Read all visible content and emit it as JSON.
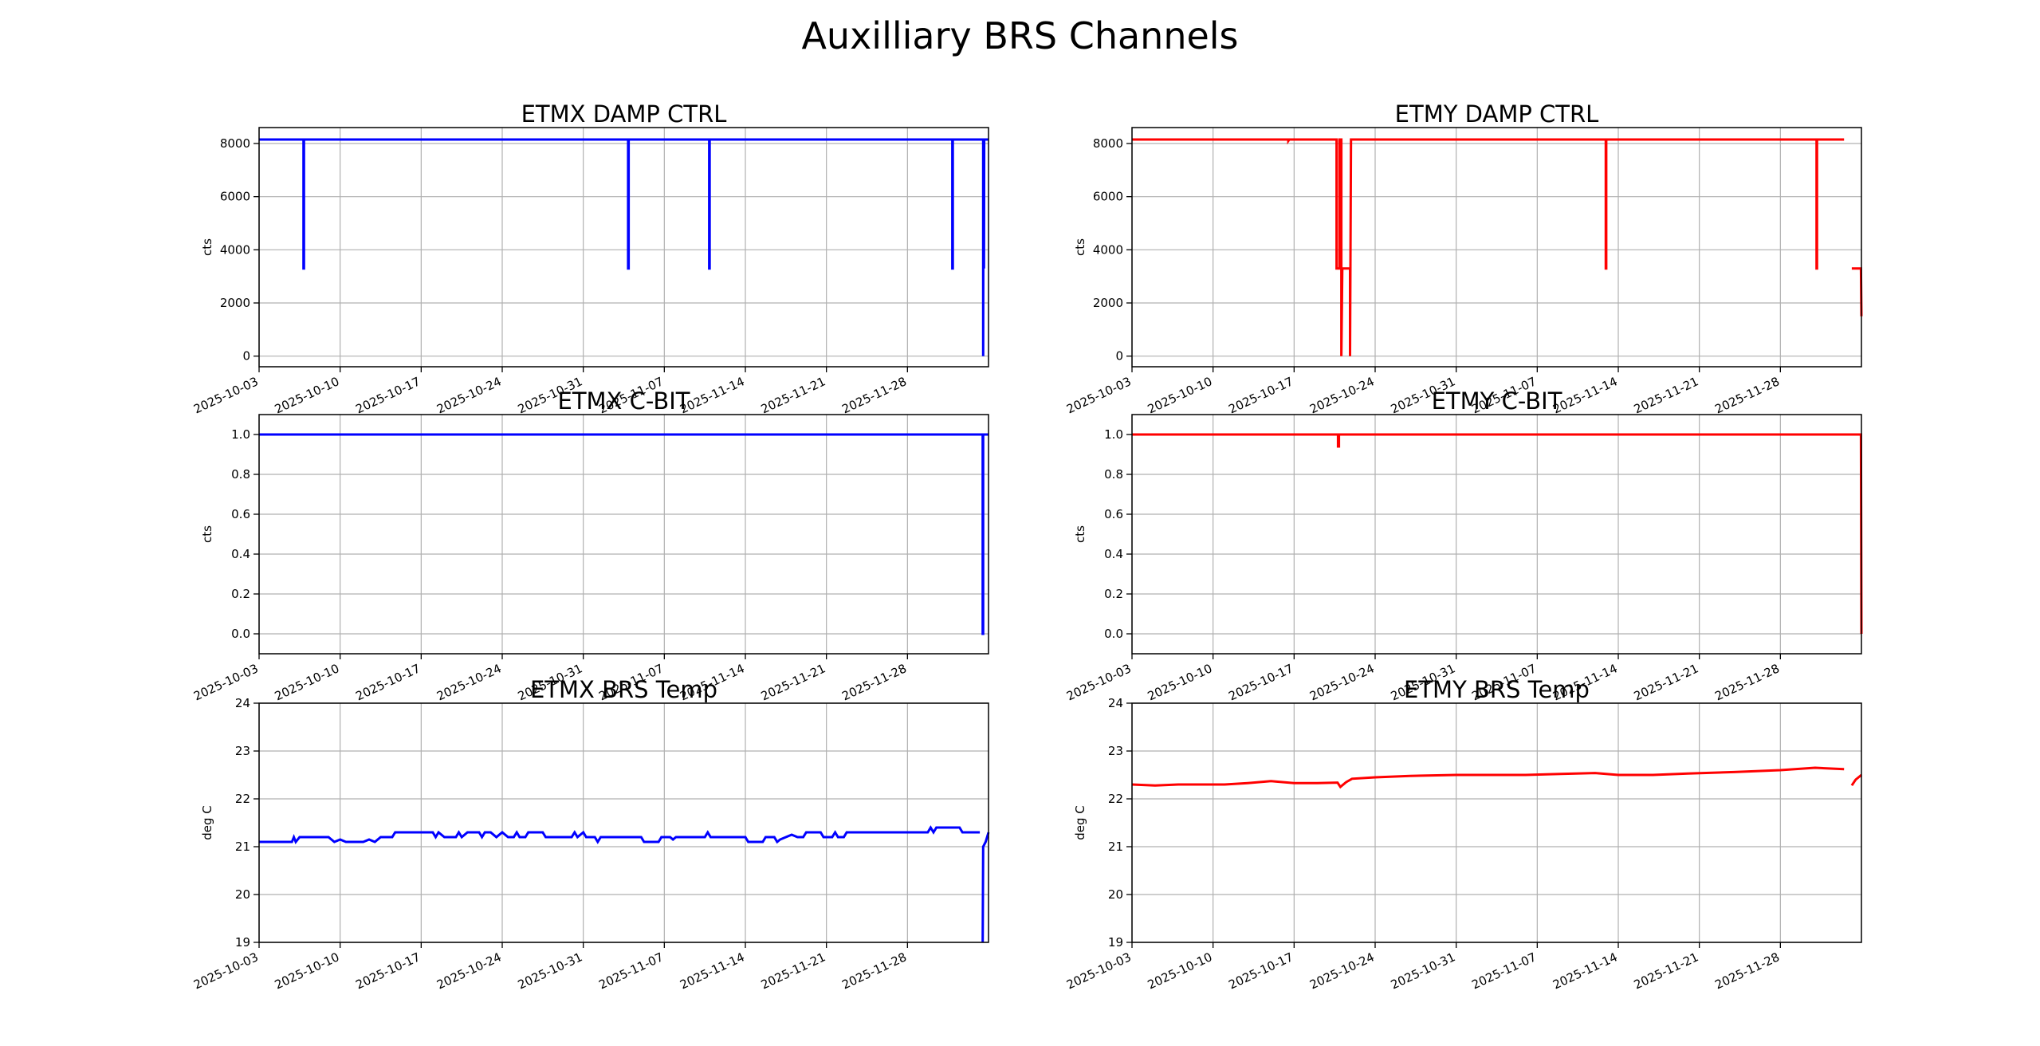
{
  "figure": {
    "title": "Auxilliary BRS Channels"
  },
  "x_tick_labels": [
    "2025-10-03",
    "2025-10-10",
    "2025-10-17",
    "2025-10-24",
    "2025-10-31",
    "2025-11-07",
    "2025-11-14",
    "2025-11-21",
    "2025-11-28"
  ],
  "chart_data": [
    {
      "type": "line",
      "title": "ETMX DAMP CTRL",
      "ylabel": "cts",
      "color": "#0000ff",
      "xlim": [
        "2025-10-03",
        "2025-12-05"
      ],
      "ylim": [
        -400,
        8600
      ],
      "yticks": [
        0,
        2000,
        4000,
        6000,
        8000
      ],
      "ytick_labels": [
        "0",
        "2000",
        "4000",
        "6000",
        "8000"
      ],
      "grid": true,
      "series": [
        {
          "points": [
            [
              "2025-10-03",
              8150
            ],
            [
              "2025-10-06 20:00",
              8150
            ],
            [
              "2025-10-06 20:00",
              3300
            ],
            [
              "2025-10-06 21:00",
              3300
            ],
            [
              "2025-10-06 21:00",
              8150
            ],
            [
              "2025-11-03 21:00",
              8150
            ],
            [
              "2025-11-03 21:00",
              3300
            ],
            [
              "2025-11-03 22:00",
              3300
            ],
            [
              "2025-11-03 22:00",
              8150
            ],
            [
              "2025-11-10 21:00",
              8150
            ],
            [
              "2025-11-10 21:00",
              3300
            ],
            [
              "2025-11-10 22:00",
              3300
            ],
            [
              "2025-11-10 22:00",
              8150
            ],
            [
              "2025-12-01 21:00",
              8150
            ],
            [
              "2025-12-01 21:00",
              3300
            ],
            [
              "2025-12-01 22:00",
              3300
            ],
            [
              "2025-12-01 22:00",
              8150
            ],
            [
              "2025-12-04 13:00",
              8150
            ],
            [
              "2025-12-04 13:00",
              0
            ],
            [
              "2025-12-04 13:30",
              6600
            ],
            [
              "2025-12-04 14:30",
              3300
            ],
            [
              "2025-12-04 15:00",
              8150
            ],
            [
              "2025-12-05",
              8150
            ]
          ]
        }
      ]
    },
    {
      "type": "line",
      "title": "ETMY DAMP CTRL",
      "ylabel": "cts",
      "color": "#ff0000",
      "xlim": [
        "2025-10-03",
        "2025-12-05"
      ],
      "ylim": [
        -400,
        8600
      ],
      "yticks": [
        0,
        2000,
        4000,
        6000,
        8000
      ],
      "ytick_labels": [
        "0",
        "2000",
        "4000",
        "6000",
        "8000"
      ],
      "grid": true,
      "series": [
        {
          "points": [
            [
              "2025-10-03",
              8150
            ],
            [
              "2025-10-16 12:00",
              8150
            ],
            [
              "2025-10-16 12:00",
              8100
            ],
            [
              "2025-10-16 14:00",
              8150
            ],
            [
              "2025-10-20 16:00",
              8150
            ],
            [
              "2025-10-20 16:00",
              3300
            ],
            [
              "2025-10-20 22:00",
              3300
            ],
            [
              "2025-10-20 22:00",
              8150
            ],
            [
              "2025-10-21 02:00",
              8150
            ],
            [
              "2025-10-21 02:00",
              0
            ],
            [
              "2025-10-21 04:00",
              3300
            ],
            [
              "2025-10-21 20:00",
              3300
            ],
            [
              "2025-10-21 20:00",
              0
            ],
            [
              "2025-10-21 22:00",
              8150
            ],
            [
              "2025-11-12 22:00",
              8150
            ],
            [
              "2025-11-12 22:00",
              3300
            ],
            [
              "2025-11-12 23:00",
              3300
            ],
            [
              "2025-11-12 23:00",
              8150
            ],
            [
              "2025-12-01 03:00",
              8150
            ],
            [
              "2025-12-01 03:00",
              3300
            ],
            [
              "2025-12-01 04:00",
              3300
            ],
            [
              "2025-12-01 04:00",
              8150
            ],
            [
              "2025-12-03 12:00",
              8150
            ],
            {
              "gap": true
            },
            [
              "2025-12-04 04:00",
              3300
            ],
            [
              "2025-12-04 23:00",
              3300
            ],
            [
              "2025-12-05",
              1500
            ]
          ]
        }
      ]
    },
    {
      "type": "line",
      "title": "ETMX C-BIT",
      "ylabel": "cts",
      "color": "#0000ff",
      "xlim": [
        "2025-10-03",
        "2025-12-05"
      ],
      "ylim": [
        -0.1,
        1.1
      ],
      "yticks": [
        0.0,
        0.2,
        0.4,
        0.6,
        0.8,
        1.0
      ],
      "ytick_labels": [
        "0.0",
        "0.2",
        "0.4",
        "0.6",
        "0.8",
        "1.0"
      ],
      "grid": true,
      "series": [
        {
          "points": [
            [
              "2025-10-03",
              1.0
            ],
            [
              "2025-12-04 12:00",
              1.0
            ],
            [
              "2025-12-04 12:00",
              0.0
            ],
            [
              "2025-12-04 13:00",
              0.0
            ],
            [
              "2025-12-04 13:00",
              1.0
            ],
            [
              "2025-12-05",
              1.0
            ]
          ]
        }
      ]
    },
    {
      "type": "line",
      "title": "ETMY C-BIT",
      "ylabel": "cts",
      "color": "#ff0000",
      "xlim": [
        "2025-10-03",
        "2025-12-05"
      ],
      "ylim": [
        -0.1,
        1.1
      ],
      "yticks": [
        0.0,
        0.2,
        0.4,
        0.6,
        0.8,
        1.0
      ],
      "ytick_labels": [
        "0.0",
        "0.2",
        "0.4",
        "0.6",
        "0.8",
        "1.0"
      ],
      "grid": true,
      "series": [
        {
          "points": [
            [
              "2025-10-03",
              1.0
            ],
            [
              "2025-10-20 19:00",
              1.0
            ],
            [
              "2025-10-20 19:00",
              0.94
            ],
            [
              "2025-10-20 21:00",
              0.94
            ],
            [
              "2025-10-20 21:00",
              1.0
            ],
            [
              "2025-12-04 23:00",
              1.0
            ],
            [
              "2025-12-05",
              0.0
            ]
          ]
        }
      ]
    },
    {
      "type": "line",
      "title": "ETMX BRS Temp",
      "ylabel": "deg C",
      "color": "#0000ff",
      "xlim": [
        "2025-10-03",
        "2025-12-05"
      ],
      "ylim": [
        19,
        24
      ],
      "yticks": [
        19,
        20,
        21,
        22,
        23,
        24
      ],
      "ytick_labels": [
        "19",
        "20",
        "21",
        "22",
        "23",
        "24"
      ],
      "grid": true,
      "series": [
        {
          "points": [
            [
              "2025-10-03",
              21.1
            ],
            [
              "2025-10-05 20:00",
              21.1
            ],
            [
              "2025-10-06",
              21.2
            ],
            [
              "2025-10-06 04:00",
              21.1
            ],
            [
              "2025-10-06 12:00",
              21.2
            ],
            [
              "2025-10-09",
              21.2
            ],
            [
              "2025-10-09 12:00",
              21.1
            ],
            [
              "2025-10-10",
              21.15
            ],
            [
              "2025-10-10 12:00",
              21.1
            ],
            [
              "2025-10-12",
              21.1
            ],
            [
              "2025-10-12 12:00",
              21.15
            ],
            [
              "2025-10-13",
              21.1
            ],
            [
              "2025-10-13 12:00",
              21.2
            ],
            [
              "2025-10-14 12:00",
              21.2
            ],
            [
              "2025-10-14 18:00",
              21.3
            ],
            [
              "2025-10-18",
              21.3
            ],
            [
              "2025-10-18 06:00",
              21.2
            ],
            [
              "2025-10-18 12:00",
              21.3
            ],
            [
              "2025-10-19",
              21.2
            ],
            [
              "2025-10-20",
              21.2
            ],
            [
              "2025-10-20 06:00",
              21.3
            ],
            [
              "2025-10-20 12:00",
              21.2
            ],
            [
              "2025-10-21",
              21.3
            ],
            [
              "2025-10-22",
              21.3
            ],
            [
              "2025-10-22 06:00",
              21.2
            ],
            [
              "2025-10-22 12:00",
              21.3
            ],
            [
              "2025-10-23",
              21.3
            ],
            [
              "2025-10-23 12:00",
              21.2
            ],
            [
              "2025-10-24",
              21.3
            ],
            [
              "2025-10-24 12:00",
              21.2
            ],
            [
              "2025-10-25",
              21.2
            ],
            [
              "2025-10-25 06:00",
              21.3
            ],
            [
              "2025-10-25 12:00",
              21.2
            ],
            [
              "2025-10-26",
              21.2
            ],
            [
              "2025-10-26 06:00",
              21.3
            ],
            [
              "2025-10-27 12:00",
              21.3
            ],
            [
              "2025-10-27 18:00",
              21.2
            ],
            [
              "2025-10-30",
              21.2
            ],
            [
              "2025-10-30 06:00",
              21.3
            ],
            [
              "2025-10-30 12:00",
              21.2
            ],
            [
              "2025-10-31",
              21.3
            ],
            [
              "2025-10-31 06:00",
              21.2
            ],
            [
              "2025-11-01",
              21.2
            ],
            [
              "2025-11-01 06:00",
              21.1
            ],
            [
              "2025-11-01 12:00",
              21.2
            ],
            [
              "2025-11-05",
              21.2
            ],
            [
              "2025-11-05 06:00",
              21.1
            ],
            [
              "2025-11-06 12:00",
              21.1
            ],
            [
              "2025-11-06 18:00",
              21.2
            ],
            [
              "2025-11-07 12:00",
              21.2
            ],
            [
              "2025-11-07 18:00",
              21.15
            ],
            [
              "2025-11-08",
              21.2
            ],
            [
              "2025-11-10 12:00",
              21.2
            ],
            [
              "2025-11-10 18:00",
              21.3
            ],
            [
              "2025-11-11",
              21.2
            ],
            [
              "2025-11-14",
              21.2
            ],
            [
              "2025-11-14 06:00",
              21.1
            ],
            [
              "2025-11-15 12:00",
              21.1
            ],
            [
              "2025-11-15 18:00",
              21.2
            ],
            [
              "2025-11-16 12:00",
              21.2
            ],
            [
              "2025-11-16 18:00",
              21.1
            ],
            [
              "2025-11-17",
              21.15
            ],
            [
              "2025-11-17 12:00",
              21.2
            ],
            [
              "2025-11-18",
              21.25
            ],
            [
              "2025-11-18 12:00",
              21.2
            ],
            [
              "2025-11-19",
              21.2
            ],
            [
              "2025-11-19 06:00",
              21.3
            ],
            [
              "2025-11-20 12:00",
              21.3
            ],
            [
              "2025-11-20 18:00",
              21.2
            ],
            [
              "2025-11-21 12:00",
              21.2
            ],
            [
              "2025-11-21 18:00",
              21.3
            ],
            [
              "2025-11-22",
              21.2
            ],
            [
              "2025-11-22 12:00",
              21.2
            ],
            [
              "2025-11-22 18:00",
              21.3
            ],
            [
              "2025-11-29 18:00",
              21.3
            ],
            [
              "2025-11-30",
              21.4
            ],
            [
              "2025-11-30 06:00",
              21.3
            ],
            [
              "2025-11-30 12:00",
              21.4
            ],
            [
              "2025-12-02 12:00",
              21.4
            ],
            [
              "2025-12-02 18:00",
              21.3
            ],
            [
              "2025-12-04 06:00",
              21.3
            ],
            {
              "gap": true
            },
            [
              "2025-12-04 12:00",
              19.0
            ],
            [
              "2025-12-04 13:00",
              21.0
            ],
            [
              "2025-12-04 18:00",
              21.1
            ],
            [
              "2025-12-05",
              21.3
            ]
          ]
        }
      ]
    },
    {
      "type": "line",
      "title": "ETMY BRS Temp",
      "ylabel": "deg C",
      "color": "#ff0000",
      "xlim": [
        "2025-10-03",
        "2025-12-05"
      ],
      "ylim": [
        19,
        24
      ],
      "yticks": [
        19,
        20,
        21,
        22,
        23,
        24
      ],
      "ytick_labels": [
        "19",
        "20",
        "21",
        "22",
        "23",
        "24"
      ],
      "grid": true,
      "series": [
        {
          "points": [
            [
              "2025-10-03",
              22.3
            ],
            [
              "2025-10-05",
              22.28
            ],
            [
              "2025-10-07",
              22.3
            ],
            [
              "2025-10-09",
              22.3
            ],
            [
              "2025-10-11",
              22.3
            ],
            [
              "2025-10-13",
              22.33
            ],
            [
              "2025-10-15",
              22.37
            ],
            [
              "2025-10-17",
              22.33
            ],
            [
              "2025-10-19",
              22.33
            ],
            [
              "2025-10-20 18:00",
              22.34
            ],
            [
              "2025-10-21",
              22.25
            ],
            [
              "2025-10-21 12:00",
              22.35
            ],
            [
              "2025-10-22",
              22.42
            ],
            [
              "2025-10-24",
              22.45
            ],
            [
              "2025-10-27",
              22.48
            ],
            [
              "2025-10-31",
              22.5
            ],
            [
              "2025-11-03",
              22.5
            ],
            [
              "2025-11-06",
              22.5
            ],
            [
              "2025-11-09",
              22.52
            ],
            [
              "2025-11-12",
              22.54
            ],
            [
              "2025-11-14",
              22.5
            ],
            [
              "2025-11-17",
              22.5
            ],
            [
              "2025-11-20",
              22.53
            ],
            [
              "2025-11-24",
              22.56
            ],
            [
              "2025-11-28",
              22.6
            ],
            [
              "2025-12-01",
              22.65
            ],
            [
              "2025-12-03 12:00",
              22.62
            ],
            {
              "gap": true
            },
            [
              "2025-12-04 04:00",
              22.28
            ],
            [
              "2025-12-04 12:00",
              22.4
            ],
            [
              "2025-12-05",
              22.5
            ]
          ]
        }
      ]
    }
  ]
}
